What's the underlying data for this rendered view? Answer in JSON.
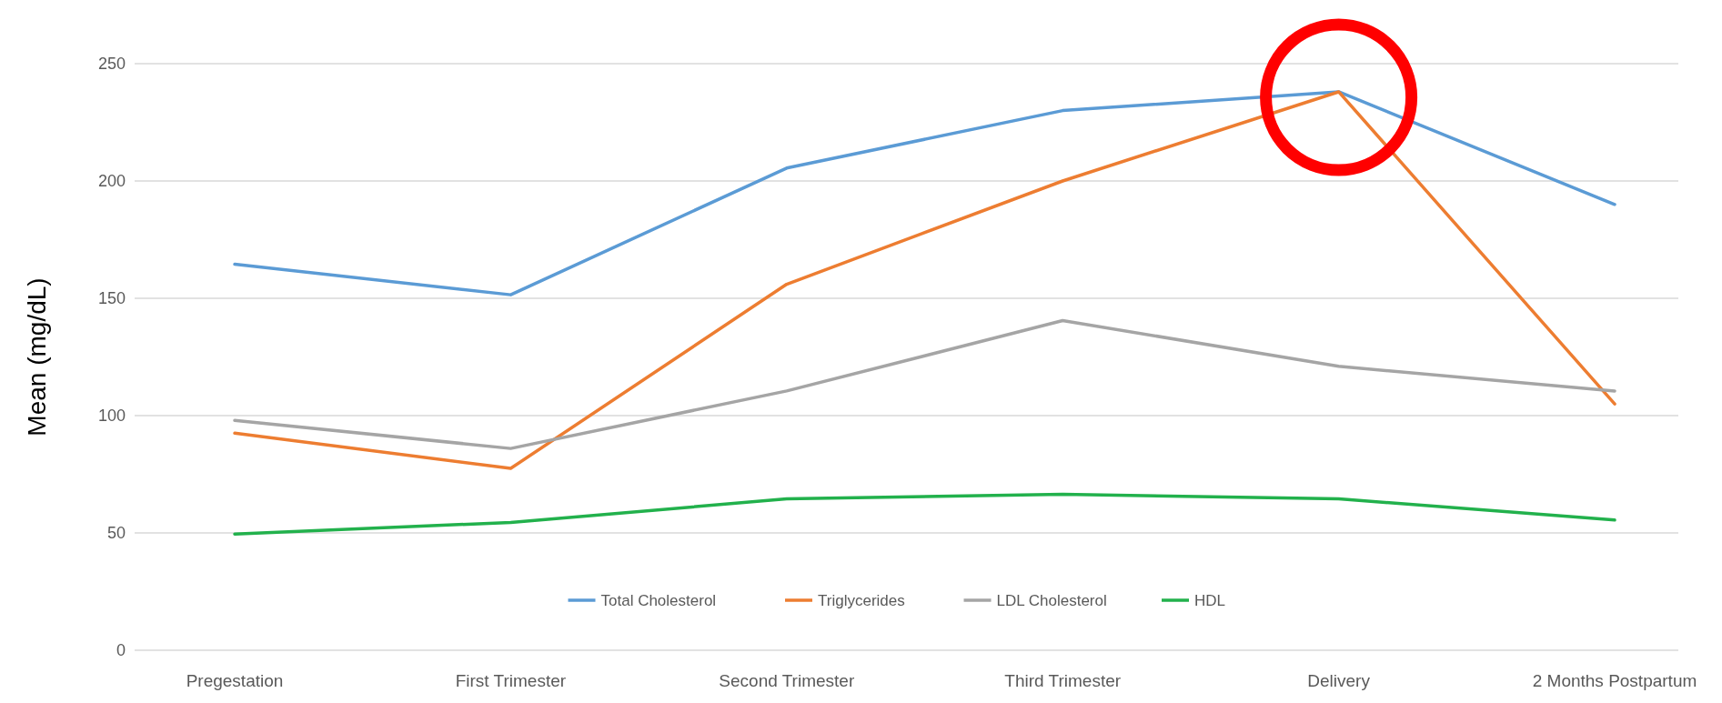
{
  "chart_data": {
    "type": "line",
    "ylabel": "Mean (mg/dL)",
    "categories": [
      "Pregestation",
      "First Trimester",
      "Second Trimester",
      "Third Trimester",
      "Delivery",
      "2 Months Postpartum"
    ],
    "series": [
      {
        "name": "Total Cholesterol",
        "color": "#5b9bd5",
        "values": [
          164.5,
          151.5,
          205.5,
          230,
          238,
          190
        ]
      },
      {
        "name": "Triglycerides",
        "color": "#ed7d31",
        "values": [
          92.5,
          77.5,
          156,
          200,
          238,
          105
        ]
      },
      {
        "name": "LDL Cholesterol",
        "color": "#a5a5a5",
        "values": [
          98,
          86,
          110.5,
          140.5,
          121,
          110.5
        ]
      },
      {
        "name": "HDL",
        "color": "#22b14c",
        "values": [
          49.5,
          54.5,
          64.5,
          66.5,
          64.5,
          55.5
        ]
      }
    ],
    "ylim": [
      0,
      250
    ],
    "yticks": [
      0,
      50,
      100,
      150,
      200,
      250
    ],
    "grid": "y",
    "legend": "bottom",
    "marker": "none",
    "line_style": "solid"
  }
}
